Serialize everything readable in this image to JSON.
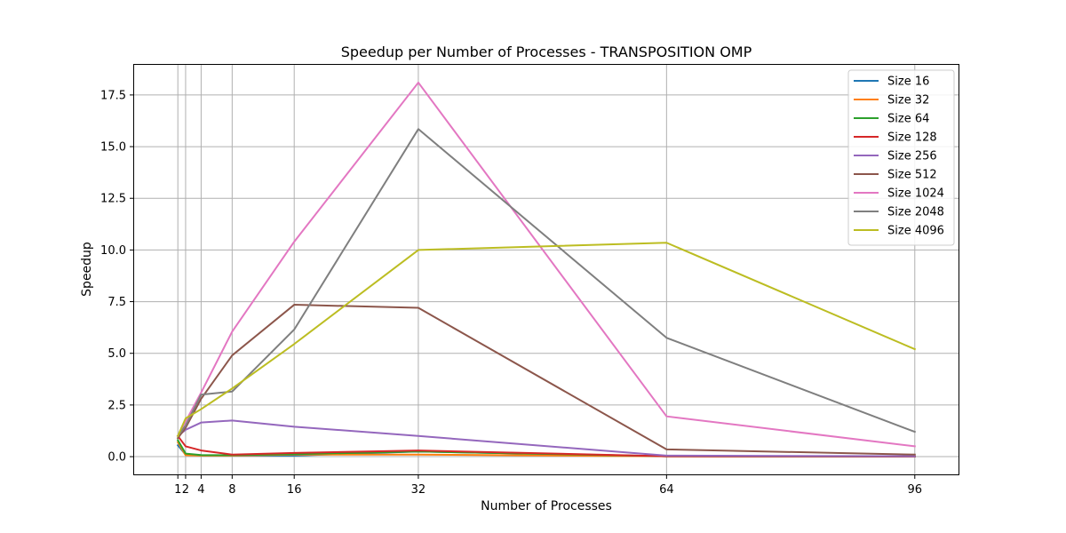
{
  "chart_data": {
    "type": "line",
    "title": "Speedup per Number of Processes - TRANSPOSITION OMP",
    "xlabel": "Number of Processes",
    "ylabel": "Speedup",
    "x": [
      1,
      2,
      4,
      8,
      16,
      32,
      64,
      96
    ],
    "xticks": [
      1,
      2,
      4,
      8,
      16,
      32,
      64,
      96
    ],
    "yticks": [
      0.0,
      2.5,
      5.0,
      7.5,
      10.0,
      12.5,
      15.0,
      17.5
    ],
    "ytick_labels": [
      "0.0",
      "2.5",
      "5.0",
      "7.5",
      "10.0",
      "12.5",
      "15.0",
      "17.5"
    ],
    "xlim": [
      -4.75,
      101.75
    ],
    "ylim": [
      -0.9,
      19.0
    ],
    "grid": true,
    "legend_position": "top-right",
    "series": [
      {
        "name": "Size 16",
        "color": "#1f77b4",
        "values": [
          0.55,
          0.1,
          0.05,
          0.05,
          0.05,
          0.25,
          0.02,
          0.01
        ]
      },
      {
        "name": "Size 32",
        "color": "#ff7f0e",
        "values": [
          0.7,
          0.07,
          0.05,
          0.05,
          0.1,
          0.1,
          0.02,
          0.01
        ]
      },
      {
        "name": "Size 64",
        "color": "#2ca02c",
        "values": [
          0.8,
          0.15,
          0.08,
          0.07,
          0.12,
          0.25,
          0.02,
          0.01
        ]
      },
      {
        "name": "Size 128",
        "color": "#d62728",
        "values": [
          1.0,
          0.5,
          0.3,
          0.1,
          0.18,
          0.3,
          0.02,
          0.01
        ]
      },
      {
        "name": "Size 256",
        "color": "#9467bd",
        "values": [
          1.0,
          1.3,
          1.65,
          1.75,
          1.45,
          1.0,
          0.05,
          0.02
        ]
      },
      {
        "name": "Size 512",
        "color": "#8c564b",
        "values": [
          0.9,
          1.4,
          2.8,
          4.9,
          7.35,
          7.2,
          0.35,
          0.1
        ]
      },
      {
        "name": "Size 1024",
        "color": "#e377c2",
        "values": [
          1.0,
          1.7,
          3.1,
          6.05,
          10.4,
          18.1,
          1.95,
          0.5
        ]
      },
      {
        "name": "Size 2048",
        "color": "#7f7f7f",
        "values": [
          1.0,
          1.5,
          3.0,
          3.15,
          6.15,
          15.85,
          5.75,
          1.2
        ]
      },
      {
        "name": "Size 4096",
        "color": "#bcbd22",
        "values": [
          1.0,
          1.85,
          2.3,
          3.3,
          5.45,
          10.0,
          10.35,
          5.2
        ]
      }
    ]
  }
}
